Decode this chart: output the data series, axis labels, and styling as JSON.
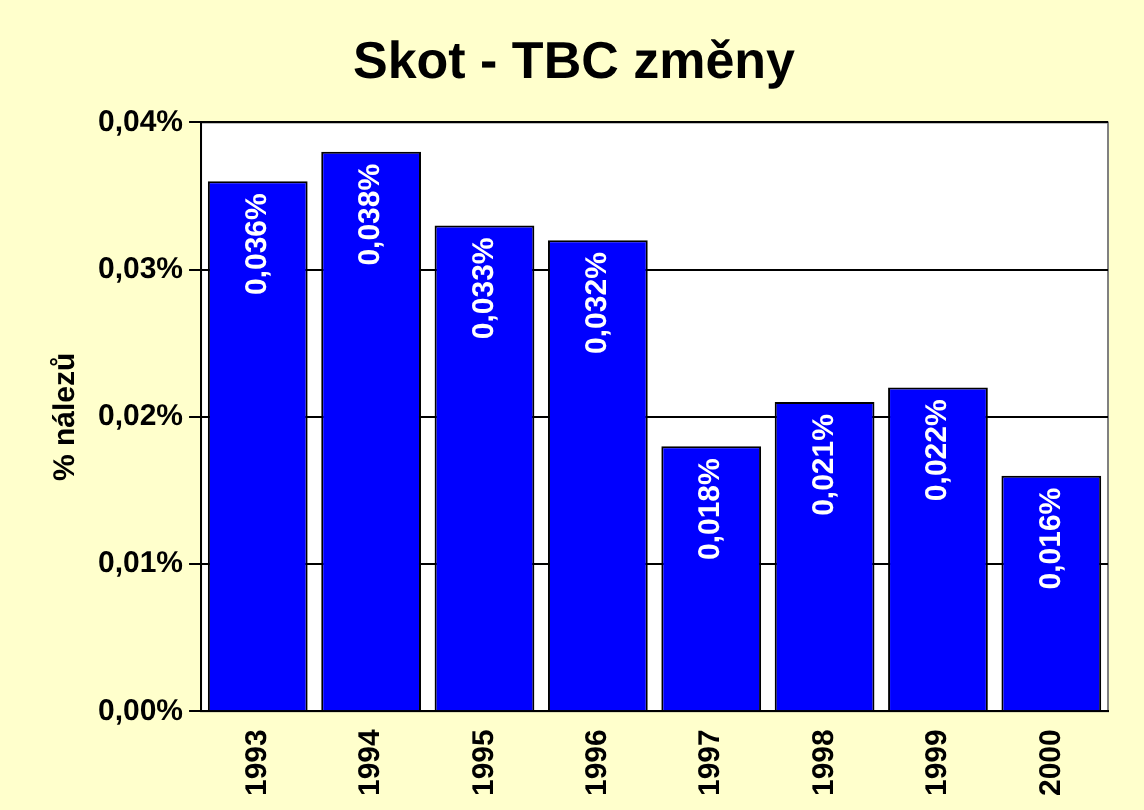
{
  "chart_data": {
    "type": "bar",
    "title": "Skot - TBC změny",
    "ylabel": "% nálezů",
    "categories": [
      "1993",
      "1994",
      "1995",
      "1996",
      "1997",
      "1998",
      "1999",
      "2000"
    ],
    "values": [
      0.036,
      0.038,
      0.033,
      0.032,
      0.018,
      0.021,
      0.022,
      0.016
    ],
    "value_labels": [
      "0,036%",
      "0,038%",
      "0,033%",
      "0,032%",
      "0,018%",
      "0,021%",
      "0,022%",
      "0,016%"
    ],
    "color": "#0000ff",
    "ylim": [
      0,
      0.04
    ],
    "yticks": [
      {
        "value": 0,
        "label": "0,00%"
      },
      {
        "value": 0.01,
        "label": "0,01%"
      },
      {
        "value": 0.02,
        "label": "0,02%"
      },
      {
        "value": 0.03,
        "label": "0,03%"
      },
      {
        "value": 0.04,
        "label": "0,04%"
      }
    ],
    "grid": "y",
    "legend": false
  }
}
